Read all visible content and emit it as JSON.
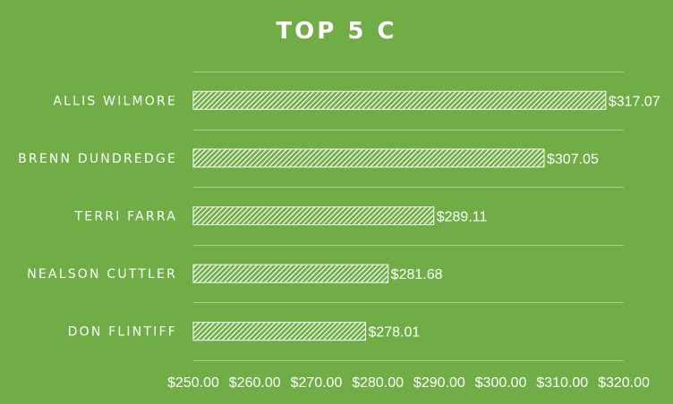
{
  "chart_data": {
    "type": "bar",
    "orientation": "horizontal",
    "title": "TOP 5 C",
    "categories": [
      "ALLIS WILMORE",
      "BRENN DUNDREDGE",
      "TERRI FARRA",
      "NEALSON CUTTLER",
      "DON FLINTIFF"
    ],
    "values": [
      317.07,
      307.05,
      289.11,
      281.68,
      278.01
    ],
    "data_labels": [
      "$317.07",
      "$307.05",
      "$289.11",
      "$281.68",
      "$278.01"
    ],
    "x_ticks": [
      "$250.00",
      "$260.00",
      "$270.00",
      "$280.00",
      "$290.00",
      "$300.00",
      "$310.00",
      "$320.00"
    ],
    "xlim": [
      250,
      320
    ],
    "grid": true,
    "bar_fill": "white hatched",
    "background": "#70AD47"
  }
}
